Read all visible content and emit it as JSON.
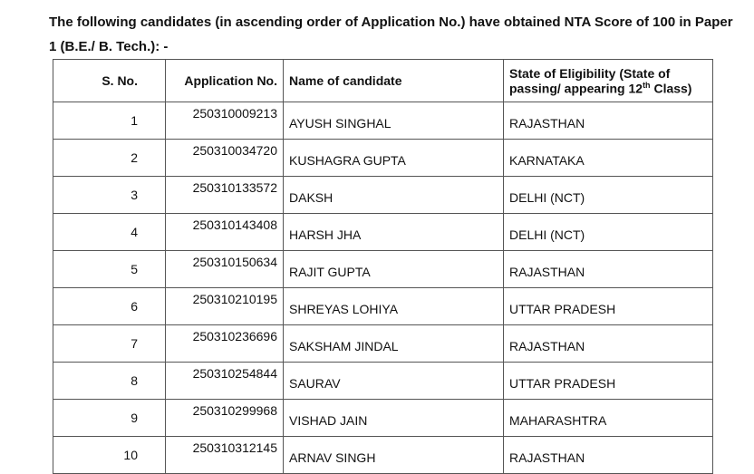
{
  "intro": "The following candidates (in ascending order of Application No.) have obtained NTA Score of 100 in Paper 1 (B.E./ B. Tech.): -",
  "headers": {
    "sno": "S. No.",
    "app": "Application No.",
    "name": "Name of candidate",
    "state_a": "State of Eligibility (State of passing/ appearing 12",
    "state_sup": "th",
    "state_b": " Class)"
  },
  "rows": [
    {
      "sno": "1",
      "app": "250310009213",
      "name": "AYUSH SINGHAL",
      "state": "RAJASTHAN"
    },
    {
      "sno": "2",
      "app": "250310034720",
      "name": "KUSHAGRA GUPTA",
      "state": "KARNATAKA"
    },
    {
      "sno": "3",
      "app": "250310133572",
      "name": "DAKSH",
      "state": "DELHI (NCT)"
    },
    {
      "sno": "4",
      "app": "250310143408",
      "name": "HARSH JHA",
      "state": "DELHI (NCT)"
    },
    {
      "sno": "5",
      "app": "250310150634",
      "name": "RAJIT GUPTA",
      "state": "RAJASTHAN"
    },
    {
      "sno": "6",
      "app": "250310210195",
      "name": "SHREYAS LOHIYA",
      "state": "UTTAR PRADESH"
    },
    {
      "sno": "7",
      "app": "250310236696",
      "name": "SAKSHAM JINDAL",
      "state": "RAJASTHAN"
    },
    {
      "sno": "8",
      "app": "250310254844",
      "name": "SAURAV",
      "state": "UTTAR PRADESH"
    },
    {
      "sno": "9",
      "app": "250310299968",
      "name": "VISHAD JAIN",
      "state": "MAHARASHTRA"
    },
    {
      "sno": "10",
      "app": "250310312145",
      "name": "ARNAV SINGH",
      "state": "RAJASTHAN"
    }
  ]
}
